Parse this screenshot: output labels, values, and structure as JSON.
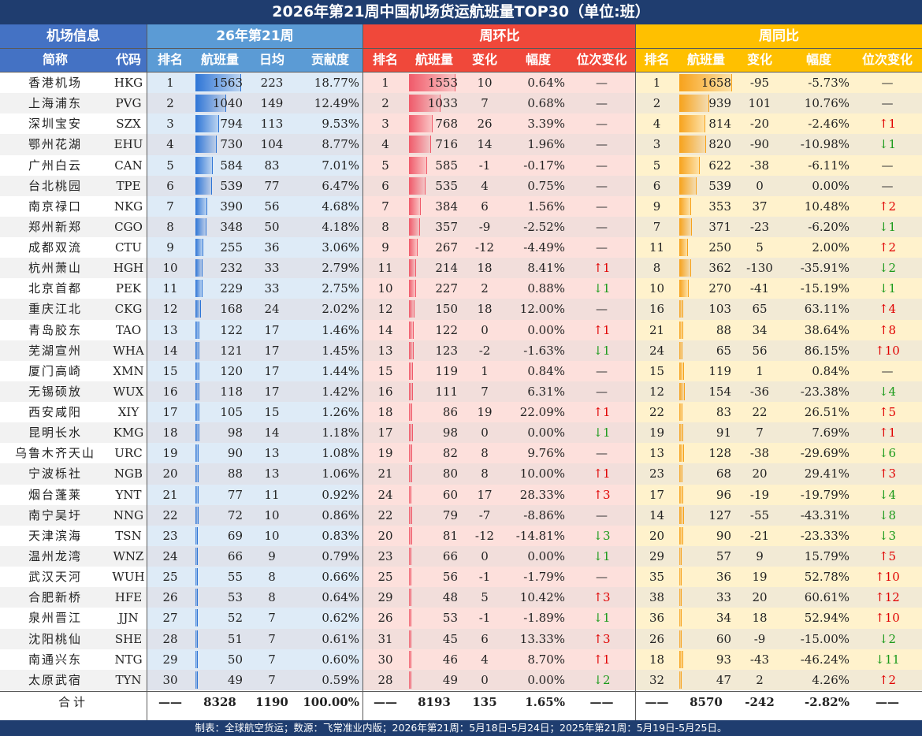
{
  "title": "2026年第21周中国机场货运航班量TOP30（单位:班）",
  "groups": {
    "info": "机场信息",
    "current": "26年第21周",
    "wow": "周环比",
    "yoy": "周同比"
  },
  "columns": {
    "name": "简称",
    "code": "代码",
    "rank": "排名",
    "flights": "航班量",
    "daily": "日均",
    "contribution": "贡献度",
    "wow_rank": "排名",
    "wow_flights": "航班量",
    "wow_change": "变化",
    "wow_pct": "幅度",
    "wow_pos": "位次变化",
    "yoy_rank": "排名",
    "yoy_flights": "航班量",
    "yoy_change": "变化",
    "yoy_pct": "幅度",
    "yoy_pos": "位次变化"
  },
  "colors": {
    "header_dark": "#1f3d6f",
    "info_header": "#4472c4",
    "current_header": "#5b9bd5",
    "wow_header": "#f0483a",
    "yoy_header": "#ffc000",
    "row_current_a": "#deebf7",
    "row_current_b": "#dfe3ec",
    "row_wow_a": "#fde0dc",
    "row_wow_b": "#f2dedb",
    "row_yoy_a": "#fff2cc",
    "row_yoy_b": "#f2ead5",
    "bar_blue": "#2e75d6",
    "bar_red": "#f05a6a",
    "bar_orange": "#f7a21b",
    "up": "#e00000",
    "down": "#1a9a1a"
  },
  "chart_data": {
    "type": "table",
    "rows": [
      [
        "香港机场",
        "HKG",
        "1",
        "1563",
        "223",
        "18.77%",
        "1",
        "1553",
        "10",
        "0.64%",
        "—",
        "1",
        "1658",
        "-95",
        "-5.73%",
        "—"
      ],
      [
        "上海浦东",
        "PVG",
        "2",
        "1040",
        "149",
        "12.49%",
        "2",
        "1033",
        "7",
        "0.68%",
        "—",
        "2",
        "939",
        "101",
        "10.76%",
        "—"
      ],
      [
        "深圳宝安",
        "SZX",
        "3",
        "794",
        "113",
        "9.53%",
        "3",
        "768",
        "26",
        "3.39%",
        "—",
        "4",
        "814",
        "-20",
        "-2.46%",
        "↑1"
      ],
      [
        "鄂州花湖",
        "EHU",
        "4",
        "730",
        "104",
        "8.77%",
        "4",
        "716",
        "14",
        "1.96%",
        "—",
        "3",
        "820",
        "-90",
        "-10.98%",
        "↓1"
      ],
      [
        "广州白云",
        "CAN",
        "5",
        "584",
        "83",
        "7.01%",
        "5",
        "585",
        "-1",
        "-0.17%",
        "—",
        "5",
        "622",
        "-38",
        "-6.11%",
        "—"
      ],
      [
        "台北桃园",
        "TPE",
        "6",
        "539",
        "77",
        "6.47%",
        "6",
        "535",
        "4",
        "0.75%",
        "—",
        "6",
        "539",
        "0",
        "0.00%",
        "—"
      ],
      [
        "南京禄口",
        "NKG",
        "7",
        "390",
        "56",
        "4.68%",
        "7",
        "384",
        "6",
        "1.56%",
        "—",
        "9",
        "353",
        "37",
        "10.48%",
        "↑2"
      ],
      [
        "郑州新郑",
        "CGO",
        "8",
        "348",
        "50",
        "4.18%",
        "8",
        "357",
        "-9",
        "-2.52%",
        "—",
        "7",
        "371",
        "-23",
        "-6.20%",
        "↓1"
      ],
      [
        "成都双流",
        "CTU",
        "9",
        "255",
        "36",
        "3.06%",
        "9",
        "267",
        "-12",
        "-4.49%",
        "—",
        "11",
        "250",
        "5",
        "2.00%",
        "↑2"
      ],
      [
        "杭州萧山",
        "HGH",
        "10",
        "232",
        "33",
        "2.79%",
        "11",
        "214",
        "18",
        "8.41%",
        "↑1",
        "8",
        "362",
        "-130",
        "-35.91%",
        "↓2"
      ],
      [
        "北京首都",
        "PEK",
        "11",
        "229",
        "33",
        "2.75%",
        "10",
        "227",
        "2",
        "0.88%",
        "↓1",
        "10",
        "270",
        "-41",
        "-15.19%",
        "↓1"
      ],
      [
        "重庆江北",
        "CKG",
        "12",
        "168",
        "24",
        "2.02%",
        "12",
        "150",
        "18",
        "12.00%",
        "—",
        "16",
        "103",
        "65",
        "63.11%",
        "↑4"
      ],
      [
        "青岛胶东",
        "TAO",
        "13",
        "122",
        "17",
        "1.46%",
        "14",
        "122",
        "0",
        "0.00%",
        "↑1",
        "21",
        "88",
        "34",
        "38.64%",
        "↑8"
      ],
      [
        "芜湖宣州",
        "WHA",
        "14",
        "121",
        "17",
        "1.45%",
        "13",
        "123",
        "-2",
        "-1.63%",
        "↓1",
        "24",
        "65",
        "56",
        "86.15%",
        "↑10"
      ],
      [
        "厦门高崎",
        "XMN",
        "15",
        "120",
        "17",
        "1.44%",
        "15",
        "119",
        "1",
        "0.84%",
        "—",
        "15",
        "119",
        "1",
        "0.84%",
        "—"
      ],
      [
        "无锡硕放",
        "WUX",
        "16",
        "118",
        "17",
        "1.42%",
        "16",
        "111",
        "7",
        "6.31%",
        "—",
        "12",
        "154",
        "-36",
        "-23.38%",
        "↓4"
      ],
      [
        "西安咸阳",
        "XIY",
        "17",
        "105",
        "15",
        "1.26%",
        "18",
        "86",
        "19",
        "22.09%",
        "↑1",
        "22",
        "83",
        "22",
        "26.51%",
        "↑5"
      ],
      [
        "昆明长水",
        "KMG",
        "18",
        "98",
        "14",
        "1.18%",
        "17",
        "98",
        "0",
        "0.00%",
        "↓1",
        "19",
        "91",
        "7",
        "7.69%",
        "↑1"
      ],
      [
        "乌鲁木齐天山",
        "URC",
        "19",
        "90",
        "13",
        "1.08%",
        "19",
        "82",
        "8",
        "9.76%",
        "—",
        "13",
        "128",
        "-38",
        "-29.69%",
        "↓6"
      ],
      [
        "宁波栎社",
        "NGB",
        "20",
        "88",
        "13",
        "1.06%",
        "21",
        "80",
        "8",
        "10.00%",
        "↑1",
        "23",
        "68",
        "20",
        "29.41%",
        "↑3"
      ],
      [
        "烟台蓬莱",
        "YNT",
        "21",
        "77",
        "11",
        "0.92%",
        "24",
        "60",
        "17",
        "28.33%",
        "↑3",
        "17",
        "96",
        "-19",
        "-19.79%",
        "↓4"
      ],
      [
        "南宁吴圩",
        "NNG",
        "22",
        "72",
        "10",
        "0.86%",
        "22",
        "79",
        "-7",
        "-8.86%",
        "—",
        "14",
        "127",
        "-55",
        "-43.31%",
        "↓8"
      ],
      [
        "天津滨海",
        "TSN",
        "23",
        "69",
        "10",
        "0.83%",
        "20",
        "81",
        "-12",
        "-14.81%",
        "↓3",
        "20",
        "90",
        "-21",
        "-23.33%",
        "↓3"
      ],
      [
        "温州龙湾",
        "WNZ",
        "24",
        "66",
        "9",
        "0.79%",
        "23",
        "66",
        "0",
        "0.00%",
        "↓1",
        "29",
        "57",
        "9",
        "15.79%",
        "↑5"
      ],
      [
        "武汉天河",
        "WUH",
        "25",
        "55",
        "8",
        "0.66%",
        "25",
        "56",
        "-1",
        "-1.79%",
        "—",
        "35",
        "36",
        "19",
        "52.78%",
        "↑10"
      ],
      [
        "合肥新桥",
        "HFE",
        "26",
        "53",
        "8",
        "0.64%",
        "29",
        "48",
        "5",
        "10.42%",
        "↑3",
        "38",
        "33",
        "20",
        "60.61%",
        "↑12"
      ],
      [
        "泉州晋江",
        "JJN",
        "27",
        "52",
        "7",
        "0.62%",
        "26",
        "53",
        "-1",
        "-1.89%",
        "↓1",
        "36",
        "34",
        "18",
        "52.94%",
        "↑10"
      ],
      [
        "沈阳桃仙",
        "SHE",
        "28",
        "51",
        "7",
        "0.61%",
        "31",
        "45",
        "6",
        "13.33%",
        "↑3",
        "26",
        "60",
        "-9",
        "-15.00%",
        "↓2"
      ],
      [
        "南通兴东",
        "NTG",
        "29",
        "50",
        "7",
        "0.60%",
        "30",
        "46",
        "4",
        "8.70%",
        "↑1",
        "18",
        "93",
        "-43",
        "-46.24%",
        "↓11"
      ],
      [
        "太原武宿",
        "TYN",
        "30",
        "49",
        "7",
        "0.59%",
        "28",
        "49",
        "0",
        "0.00%",
        "↓2",
        "32",
        "47",
        "2",
        "4.26%",
        "↑2"
      ]
    ],
    "total": [
      "合计",
      "——",
      "8328",
      "1190",
      "100.00%",
      "——",
      "8193",
      "135",
      "1.65%",
      "——",
      "——",
      "8570",
      "-242",
      "-2.82%",
      "——"
    ]
  },
  "footer": "制表：全球航空货运；数源：飞常准业内版；2026年第21周：5月18日-5月24日；2025年第21周：5月19日-5月25日。"
}
